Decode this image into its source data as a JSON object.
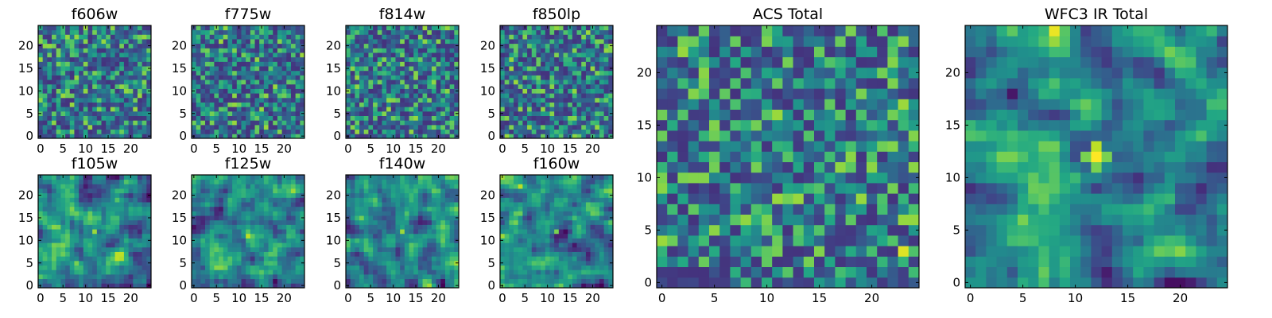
{
  "chart_data": [
    {
      "type": "heatmap",
      "title": "f606w",
      "grid_size": 25,
      "xticks": [
        "0",
        "5",
        "10",
        "15",
        "20"
      ],
      "yticks": [
        "0",
        "5",
        "10",
        "15",
        "20"
      ],
      "colormap": "viridis",
      "seed": 11,
      "hotspots": []
    },
    {
      "type": "heatmap",
      "title": "f775w",
      "grid_size": 25,
      "xticks": [
        "0",
        "5",
        "10",
        "15",
        "20"
      ],
      "yticks": [
        "0",
        "5",
        "10",
        "15",
        "20"
      ],
      "colormap": "viridis",
      "seed": 23,
      "hotspots": []
    },
    {
      "type": "heatmap",
      "title": "f814w",
      "grid_size": 25,
      "xticks": [
        "0",
        "5",
        "10",
        "15",
        "20"
      ],
      "yticks": [
        "0",
        "5",
        "10",
        "15",
        "20"
      ],
      "colormap": "viridis",
      "seed": 37,
      "hotspots": []
    },
    {
      "type": "heatmap",
      "title": "f850lp",
      "grid_size": 25,
      "xticks": [
        "0",
        "5",
        "10",
        "15",
        "20"
      ],
      "yticks": [
        "0",
        "5",
        "10",
        "15",
        "20"
      ],
      "colormap": "viridis",
      "seed": 41,
      "hotspots": []
    },
    {
      "type": "heatmap",
      "title": "f105w",
      "grid_size": 25,
      "xticks": [
        "0",
        "5",
        "10",
        "15",
        "20"
      ],
      "yticks": [
        "0",
        "5",
        "10",
        "15",
        "20"
      ],
      "colormap": "viridis",
      "seed": 53,
      "hotspots": [
        {
          "x": 12,
          "y": 12,
          "value": 0.85
        }
      ]
    },
    {
      "type": "heatmap",
      "title": "f125w",
      "grid_size": 25,
      "xticks": [
        "0",
        "5",
        "10",
        "15",
        "20"
      ],
      "yticks": [
        "0",
        "5",
        "10",
        "15",
        "20"
      ],
      "colormap": "viridis",
      "seed": 67,
      "hotspots": [
        {
          "x": 12,
          "y": 11,
          "value": 0.9
        }
      ]
    },
    {
      "type": "heatmap",
      "title": "f140w",
      "grid_size": 25,
      "xticks": [
        "0",
        "5",
        "10",
        "15",
        "20"
      ],
      "yticks": [
        "0",
        "5",
        "10",
        "15",
        "20"
      ],
      "colormap": "viridis",
      "seed": 79,
      "hotspots": [
        {
          "x": 12,
          "y": 12,
          "value": 0.85
        }
      ]
    },
    {
      "type": "heatmap",
      "title": "f160w",
      "grid_size": 25,
      "xticks": [
        "0",
        "5",
        "10",
        "15",
        "20"
      ],
      "yticks": [
        "0",
        "5",
        "10",
        "15",
        "20"
      ],
      "colormap": "viridis",
      "seed": 83,
      "hotspots": [
        {
          "x": 4,
          "y": 22,
          "value": 0.9
        },
        {
          "x": 12,
          "y": 12,
          "value": 0.8
        }
      ]
    },
    {
      "type": "heatmap",
      "title": "ACS Total",
      "grid_size": 25,
      "xticks": [
        "0",
        "5",
        "10",
        "15",
        "20"
      ],
      "yticks": [
        "0",
        "5",
        "10",
        "15",
        "20"
      ],
      "colormap": "viridis",
      "seed": 97,
      "hotspots": [
        {
          "x": 23,
          "y": 3,
          "value": 0.95
        },
        {
          "x": 4,
          "y": 19,
          "value": 0.8
        }
      ]
    },
    {
      "type": "heatmap",
      "title": "WFC3 IR Total",
      "grid_size": 25,
      "xticks": [
        "0",
        "5",
        "10",
        "15",
        "20"
      ],
      "yticks": [
        "0",
        "5",
        "10",
        "15",
        "20"
      ],
      "colormap": "viridis",
      "seed": 101,
      "hotspots": [
        {
          "x": 12,
          "y": 12,
          "value": 1.0
        },
        {
          "x": 12,
          "y": 13,
          "value": 0.9
        },
        {
          "x": 11,
          "y": 12,
          "value": 0.8
        },
        {
          "x": 13,
          "y": 12,
          "value": 0.8
        },
        {
          "x": 12,
          "y": 11,
          "value": 0.8
        }
      ]
    }
  ]
}
